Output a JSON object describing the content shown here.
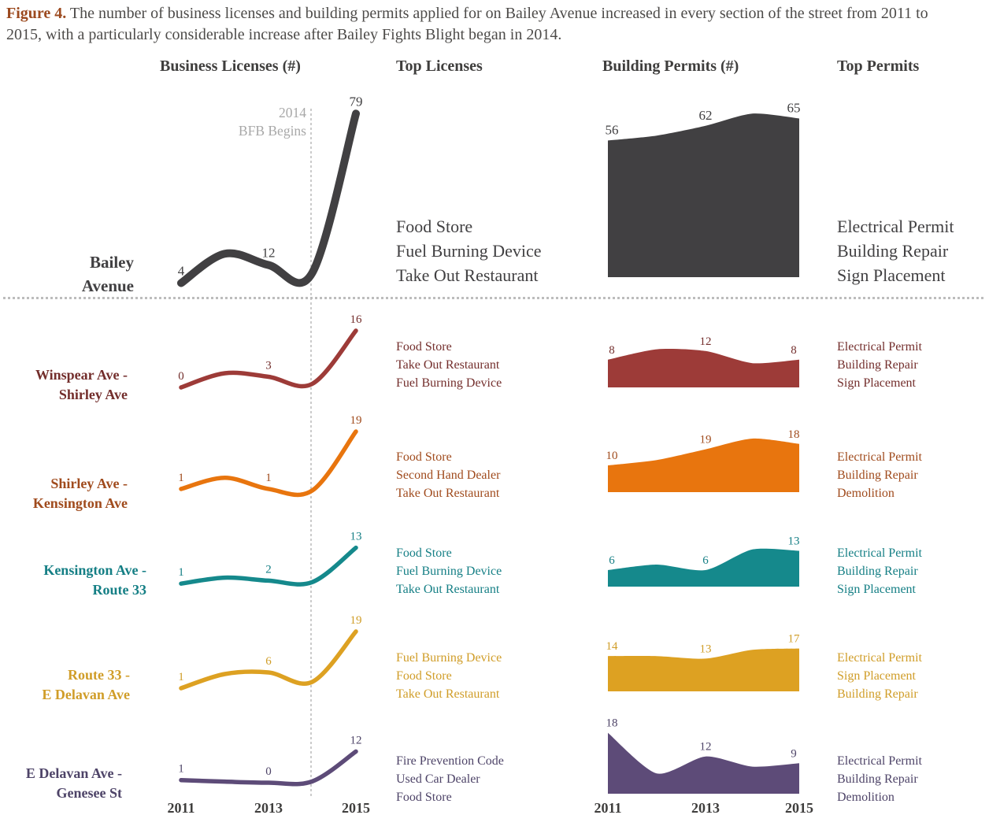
{
  "title": {
    "figure_label": "Figure 4.",
    "text": " The number of business licenses and building permits applied for on Bailey Avenue increased in every section of the street from 2011 to 2015, with a particularly considerable increase after Bailey Fights Blight began in 2014."
  },
  "columns": {
    "business_licenses": "Business Licenses (#)",
    "top_licenses": "Top Licenses",
    "building_permits": "Building Permits (#)",
    "top_permits": "Top Permits"
  },
  "annotation": {
    "line1": "2014",
    "line2": "BFB Begins"
  },
  "x_axis": {
    "years": [
      "2011",
      "2013",
      "2015"
    ]
  },
  "rows": [
    {
      "id": "bailey-avenue",
      "label_lines": [
        "Bailey",
        "Avenue"
      ],
      "line_color": "#414042",
      "text_color": "#414042",
      "licenses": {
        "labels": [
          "4",
          "12",
          "79"
        ],
        "shape": [
          4,
          17,
          12,
          8.5,
          79
        ]
      },
      "top_licenses": [
        "Food Store",
        "Fuel Burning Device",
        "Take Out Restaurant"
      ],
      "permits": {
        "labels": [
          "56",
          "62",
          "65"
        ],
        "shape": [
          56,
          58,
          62,
          67,
          65
        ]
      },
      "top_permits": [
        "Electrical Permit",
        "Building Repair",
        "Sign Placement"
      ]
    },
    {
      "id": "winspear-shirley",
      "label_lines": [
        "Winspear Ave  -",
        "Shirley Ave"
      ],
      "line_color": "#9d3b38",
      "text_color": "#732e2c",
      "licenses": {
        "labels": [
          "0",
          "3",
          "16"
        ],
        "shape": [
          0,
          4,
          3,
          1,
          16
        ]
      },
      "top_licenses": [
        "Food Store",
        "Take Out Restaurant",
        "Fuel Burning Device"
      ],
      "permits": {
        "labels": [
          "8",
          "12",
          "8"
        ],
        "shape": [
          8,
          11,
          10.5,
          7,
          8
        ]
      },
      "top_permits": [
        "Electrical Permit",
        "Building Repair",
        "Sign Placement"
      ]
    },
    {
      "id": "shirley-kensington",
      "label_lines": [
        "Shirley Ave -",
        "Kensington Ave"
      ],
      "line_color": "#e8750e",
      "text_color": "#a04b1d",
      "licenses": {
        "labels": [
          "1",
          "1",
          "19"
        ],
        "shape": [
          1,
          4.5,
          1,
          0.5,
          19
        ]
      },
      "top_licenses": [
        "Food Store",
        "Second Hand Dealer",
        "Take Out Restaurant"
      ],
      "permits": {
        "labels": [
          "10",
          "19",
          "18"
        ],
        "shape": [
          10,
          12,
          16,
          20,
          18
        ]
      },
      "top_permits": [
        "Electrical Permit",
        "Building Repair",
        "Demolition"
      ]
    },
    {
      "id": "kensington-route33",
      "label_lines": [
        "Kensington Ave -",
        "Route 33"
      ],
      "line_color": "#15898c",
      "text_color": "#157f85",
      "licenses": {
        "labels": [
          "1",
          "2",
          "13"
        ],
        "shape": [
          1,
          3,
          2,
          1.5,
          13
        ]
      },
      "top_licenses": [
        "Food Store",
        "Fuel Burning Device",
        "Take Out Restaurant"
      ],
      "permits": {
        "labels": [
          "6",
          "6",
          "13"
        ],
        "shape": [
          6,
          8,
          6,
          13.5,
          13
        ]
      },
      "top_permits": [
        "Electrical Permit",
        "Building Repair",
        "Sign Placement"
      ]
    },
    {
      "id": "route33-edelavan",
      "label_lines": [
        "Route 33 -",
        "E Delavan Ave"
      ],
      "line_color": "#dda122",
      "text_color": "#d09d28",
      "licenses": {
        "labels": [
          "1",
          "6",
          "19"
        ],
        "shape": [
          1,
          5.5,
          6,
          3,
          19
        ]
      },
      "top_licenses": [
        "Fuel Burning Device",
        "Food Store",
        "Take Out Restaurant"
      ],
      "permits": {
        "labels": [
          "14",
          "13",
          "17"
        ],
        "shape": [
          14,
          14,
          13,
          16.5,
          17
        ]
      },
      "top_permits": [
        "Electrical Permit",
        "Sign Placement",
        "Building Repair"
      ]
    },
    {
      "id": "edelavan-genesee",
      "label_lines": [
        "E Delavan Ave -",
        "Genesee St"
      ],
      "line_color": "#5d4b78",
      "text_color": "#4e4468",
      "licenses": {
        "labels": [
          "1",
          "0",
          "12"
        ],
        "shape": [
          1,
          0.4,
          0,
          0.5,
          12
        ]
      },
      "top_licenses": [
        "Fire Prevention Code",
        "Used Car Dealer",
        "Food Store"
      ],
      "permits": {
        "labels": [
          "18",
          "12",
          "9"
        ],
        "shape": [
          18,
          6,
          11,
          8,
          9
        ]
      },
      "top_permits": [
        "Electrical Permit",
        "Building Repair",
        "Demolition"
      ]
    }
  ],
  "chart_data": [
    {
      "type": "line",
      "title": "Business Licenses (#)",
      "x": [
        2011,
        2013,
        2015
      ],
      "series": [
        {
          "name": "Bailey Avenue",
          "values": [
            4,
            12,
            79
          ]
        },
        {
          "name": "Winspear Ave - Shirley Ave",
          "values": [
            0,
            3,
            16
          ]
        },
        {
          "name": "Shirley Ave - Kensington Ave",
          "values": [
            1,
            1,
            19
          ]
        },
        {
          "name": "Kensington Ave - Route 33",
          "values": [
            1,
            2,
            13
          ]
        },
        {
          "name": "Route 33 - E Delavan Ave",
          "values": [
            1,
            6,
            19
          ]
        },
        {
          "name": "E Delavan Ave - Genesee St",
          "values": [
            1,
            0,
            12
          ]
        }
      ],
      "annotation": "2014 BFB Begins",
      "xlim": [
        2011,
        2015
      ],
      "grid": false,
      "legend_position": "row-labels-left"
    },
    {
      "type": "area",
      "title": "Building Permits (#)",
      "x": [
        2011,
        2013,
        2015
      ],
      "series": [
        {
          "name": "Bailey Avenue",
          "values": [
            56,
            62,
            65
          ]
        },
        {
          "name": "Winspear Ave - Shirley Ave",
          "values": [
            8,
            12,
            8
          ]
        },
        {
          "name": "Shirley Ave - Kensington Ave",
          "values": [
            10,
            19,
            18
          ]
        },
        {
          "name": "Kensington Ave - Route 33",
          "values": [
            6,
            6,
            13
          ]
        },
        {
          "name": "Route 33 - E Delavan Ave",
          "values": [
            14,
            13,
            17
          ]
        },
        {
          "name": "E Delavan Ave - Genesee St",
          "values": [
            18,
            12,
            9
          ]
        }
      ],
      "xlim": [
        2011,
        2015
      ],
      "grid": false,
      "legend_position": "row-labels-left"
    }
  ]
}
